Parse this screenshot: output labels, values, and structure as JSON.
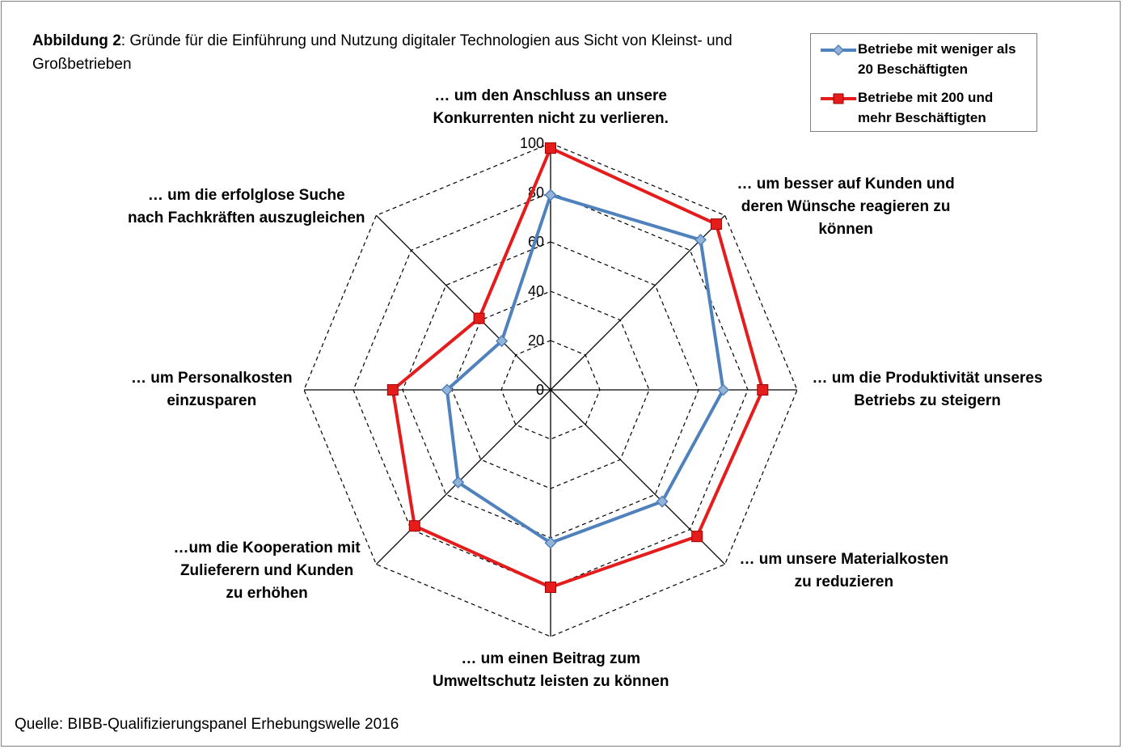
{
  "title": {
    "bold": "Abbildung 2",
    "rest": ": Gründe für die Einführung und Nutzung digitaler Technologien aus Sicht von Kleinst- und Großbetrieben"
  },
  "source": "Quelle: BIBB-Qualifizierungspanel Erhebungswelle 2016",
  "chart_data": {
    "type": "radar",
    "title": "Abbildung 2: Gründe für die Einführung und Nutzung digitaler Technologien aus Sicht von Kleinst- und Großbetrieben",
    "categories": [
      "… um den Anschluss an unsere Konkurrenten nicht zu verlieren.",
      "… um besser auf Kunden und deren Wünsche reagieren zu können",
      "… um die Produktivität unseres Betriebs zu steigern",
      "… um unsere Materialkosten zu reduzieren",
      "… um einen Beitrag zum Umweltschutz leisten zu können",
      "…um die Kooperation mit Zulieferern und Kunden zu erhöhen",
      "… um Personalkosten einzusparen",
      "… um die erfolglose Suche nach Fachkräften auszugleichen"
    ],
    "ticks": [
      "0",
      "20",
      "40",
      "60",
      "80",
      "100"
    ],
    "rlim": [
      0,
      100
    ],
    "grid": true,
    "legend_position": "top-right",
    "series": [
      {
        "name": "Betriebe mit weniger als 20 Beschäftigten",
        "color": "#4f81bd",
        "marker": "diamond",
        "values": [
          79,
          86,
          70,
          64,
          62,
          53,
          42,
          28
        ]
      },
      {
        "name": "Betriebe mit 200 und mehr Beschäftigten",
        "color": "#e51c1c",
        "marker": "square",
        "values": [
          98,
          95,
          86,
          84,
          80,
          78,
          64,
          41
        ]
      }
    ]
  },
  "labels": [
    [
      "… um den Anschluss an unsere",
      "Konkurrenten nicht zu verlieren."
    ],
    [
      "… um besser auf Kunden und",
      "deren Wünsche reagieren zu",
      "können"
    ],
    [
      "… um die Produktivität unseres",
      "Betriebs zu steigern"
    ],
    [
      "… um unsere Materialkosten",
      "zu reduzieren"
    ],
    [
      "… um einen Beitrag zum",
      "Umweltschutz leisten zu können"
    ],
    [
      "…um die Kooperation mit",
      "Zulieferern und Kunden",
      "zu erhöhen"
    ],
    [
      "… um Personalkosten",
      "einzusparen"
    ],
    [
      "… um die erfolglose Suche",
      "nach Fachkräften auszugleichen"
    ]
  ],
  "legend": {
    "items": [
      [
        "Betriebe mit weniger als",
        "20 Beschäftigten"
      ],
      [
        "Betriebe mit 200 und",
        "mehr Beschäftigten"
      ]
    ]
  }
}
